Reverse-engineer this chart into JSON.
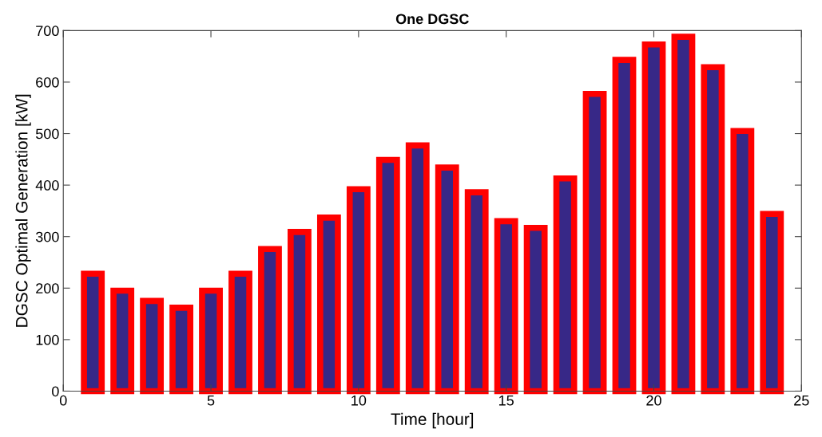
{
  "chart_data": {
    "type": "bar",
    "title": "One DGSC",
    "xlabel": "Time [hour]",
    "ylabel": "DGSC Optimal Generation [kW]",
    "x": [
      1,
      2,
      3,
      4,
      5,
      6,
      7,
      8,
      9,
      10,
      11,
      12,
      13,
      14,
      15,
      16,
      17,
      18,
      19,
      20,
      21,
      22,
      23,
      24
    ],
    "series": [
      {
        "color": "#372887",
        "values": [
          228,
          195,
          175,
          162,
          195,
          228,
          276,
          309,
          337,
          392,
          449,
          477,
          434,
          386,
          330,
          317,
          413,
          577,
          643,
          673,
          688,
          629,
          505,
          344
        ]
      }
    ],
    "xlim": [
      0,
      25
    ],
    "xticks": [
      0,
      5,
      10,
      15,
      20,
      25
    ],
    "ylim": [
      0,
      700
    ],
    "yticks": [
      0,
      100,
      200,
      300,
      400,
      500,
      600,
      700
    ],
    "grid": false,
    "legend": false
  }
}
